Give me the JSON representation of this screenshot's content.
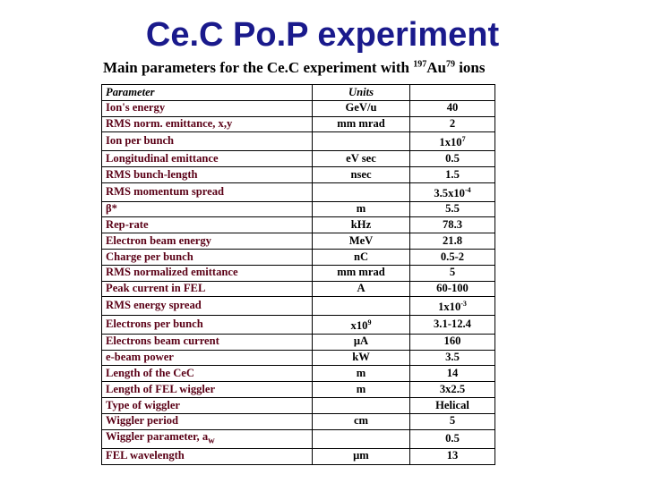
{
  "title": "Ce.C Po.P experiment",
  "caption": {
    "prefix": "Main parameters for the Ce.C experiment with ",
    "mass": "197",
    "element": "Au",
    "charge": "79",
    "suffix": " ions"
  },
  "table": {
    "headers": {
      "parameter": "Parameter",
      "units": "Units",
      "value": ""
    },
    "rows": [
      {
        "parameter": "Ion's energy",
        "units": "GeV/u",
        "value": "40"
      },
      {
        "parameter": "RMS norm. emittance, x,y",
        "units": "mm mrad",
        "value": "2"
      },
      {
        "parameter": "Ion per bunch",
        "units": "",
        "value": "1x10",
        "value_sup": "7"
      },
      {
        "parameter": "Longitudinal emittance",
        "units": "eV sec",
        "value": "0.5"
      },
      {
        "parameter": "RMS bunch-length",
        "units": "nsec",
        "value": "1.5"
      },
      {
        "parameter": "RMS momentum spread",
        "units": "",
        "value": "3.5x10",
        "value_sup": "-4"
      },
      {
        "parameter": "β*",
        "units": "m",
        "value": "5.5"
      },
      {
        "parameter": "Rep-rate",
        "units": "kHz",
        "value": "78.3"
      },
      {
        "parameter": "Electron beam energy",
        "units": "MeV",
        "value": "21.8"
      },
      {
        "parameter": "Charge per bunch",
        "units": "nC",
        "value": "0.5-2"
      },
      {
        "parameter": "RMS normalized emittance",
        "units": "mm mrad",
        "value": "5"
      },
      {
        "parameter": "Peak current in FEL",
        "units": "A",
        "value": "60-100"
      },
      {
        "parameter": "RMS energy spread",
        "units": "",
        "value": "1x10",
        "value_sup": "-3"
      },
      {
        "parameter": "Electrons per bunch",
        "units": "x10",
        "units_sup": "9",
        "value": "3.1-12.4"
      },
      {
        "parameter": "Electrons beam current",
        "units": "μA",
        "value": "160"
      },
      {
        "parameter": "e-beam power",
        "units": "kW",
        "value": "3.5"
      },
      {
        "parameter": "Length of the CeC",
        "units": "m",
        "value": "14"
      },
      {
        "parameter": "Length of FEL wiggler",
        "units": "m",
        "value": "3x2.5"
      },
      {
        "parameter": "Type of wiggler",
        "units": "",
        "value": "Helical"
      },
      {
        "parameter": "Wiggler period",
        "units": "cm",
        "value": "5"
      },
      {
        "parameter": "Wiggler parameter, a",
        "parameter_sub": "w",
        "units": "",
        "value": "0.5"
      },
      {
        "parameter": "FEL wavelength",
        "units": "μm",
        "value": "13"
      }
    ]
  },
  "colors": {
    "title": "#1a1a8c",
    "param_text": "#5a0016",
    "highlight": "#c00000"
  }
}
